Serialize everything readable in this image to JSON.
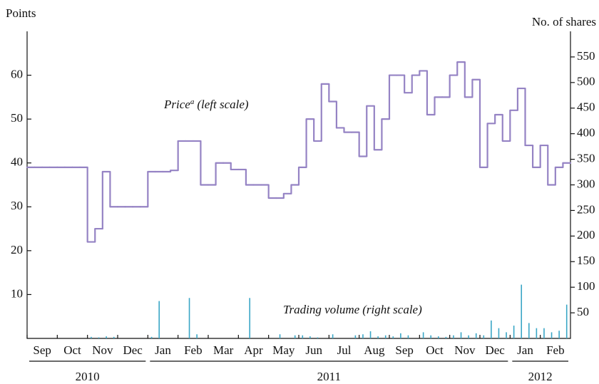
{
  "chart_data": {
    "type": "line",
    "ylabel": "Points",
    "y2label": "No. of shares",
    "categories": [
      "Sep",
      "Oct",
      "Nov",
      "Dec",
      "Jan",
      "Feb",
      "Mar",
      "Apr",
      "May",
      "Jun",
      "Jul",
      "Aug",
      "Sep",
      "Oct",
      "Nov",
      "Dec",
      "Jan",
      "Feb"
    ],
    "years": [
      "2010",
      "2011",
      "2012"
    ],
    "ylim": [
      0,
      70
    ],
    "yticks": [
      10,
      20,
      30,
      40,
      50,
      60
    ],
    "y2lim": [
      0,
      600
    ],
    "y2ticks": [
      50,
      100,
      150,
      200,
      250,
      300,
      350,
      400,
      450,
      500,
      550
    ],
    "series": [
      {
        "name": "Price",
        "color": "#9583c4",
        "type": "step",
        "values": [
          [
            39,
            39,
            39,
            39
          ],
          [
            39,
            39,
            39,
            39
          ],
          [
            22,
            25,
            38,
            30
          ],
          [
            30,
            30,
            30,
            30
          ],
          [
            38,
            38,
            38,
            38.3
          ],
          [
            45,
            45,
            45,
            35
          ],
          [
            35,
            40,
            40,
            38.5
          ],
          [
            38.5,
            35,
            35,
            35
          ],
          [
            32,
            32,
            33,
            35
          ],
          [
            39,
            50,
            45,
            58
          ],
          [
            54,
            48,
            47,
            47
          ],
          [
            41.5,
            53,
            43,
            50
          ],
          [
            60,
            60,
            56,
            60
          ],
          [
            61,
            51,
            55,
            55
          ],
          [
            60,
            63,
            55,
            59
          ],
          [
            39,
            49,
            51,
            45
          ],
          [
            52,
            57,
            44,
            39
          ],
          [
            44,
            35,
            39,
            40
          ]
        ]
      },
      {
        "name": "Trading volume",
        "color": "#3aa6c6",
        "type": "bar",
        "axis": "y2",
        "values": [
          [
            0,
            0,
            0,
            0
          ],
          [
            0,
            0,
            0,
            0
          ],
          [
            3,
            2,
            4,
            3
          ],
          [
            0,
            0,
            0,
            0
          ],
          [
            3,
            73,
            0,
            0
          ],
          [
            0,
            79,
            8,
            0
          ],
          [
            0,
            0,
            0,
            0
          ],
          [
            0,
            79,
            0,
            0
          ],
          [
            0,
            8,
            0,
            6
          ],
          [
            6,
            4,
            2,
            0
          ],
          [
            8,
            0,
            0,
            6
          ],
          [
            8,
            14,
            4,
            6
          ],
          [
            4,
            10,
            6,
            0
          ],
          [
            12,
            6,
            4,
            3
          ],
          [
            6,
            12,
            6,
            10
          ],
          [
            6,
            35,
            20,
            12
          ],
          [
            25,
            105,
            30,
            20
          ],
          [
            20,
            12,
            15,
            66
          ]
        ]
      }
    ],
    "annotations": [
      {
        "text": "Price",
        "note": "a",
        "suffix": "(left scale)"
      },
      {
        "text": "Trading volume",
        "suffix": "(right scale)"
      }
    ]
  }
}
